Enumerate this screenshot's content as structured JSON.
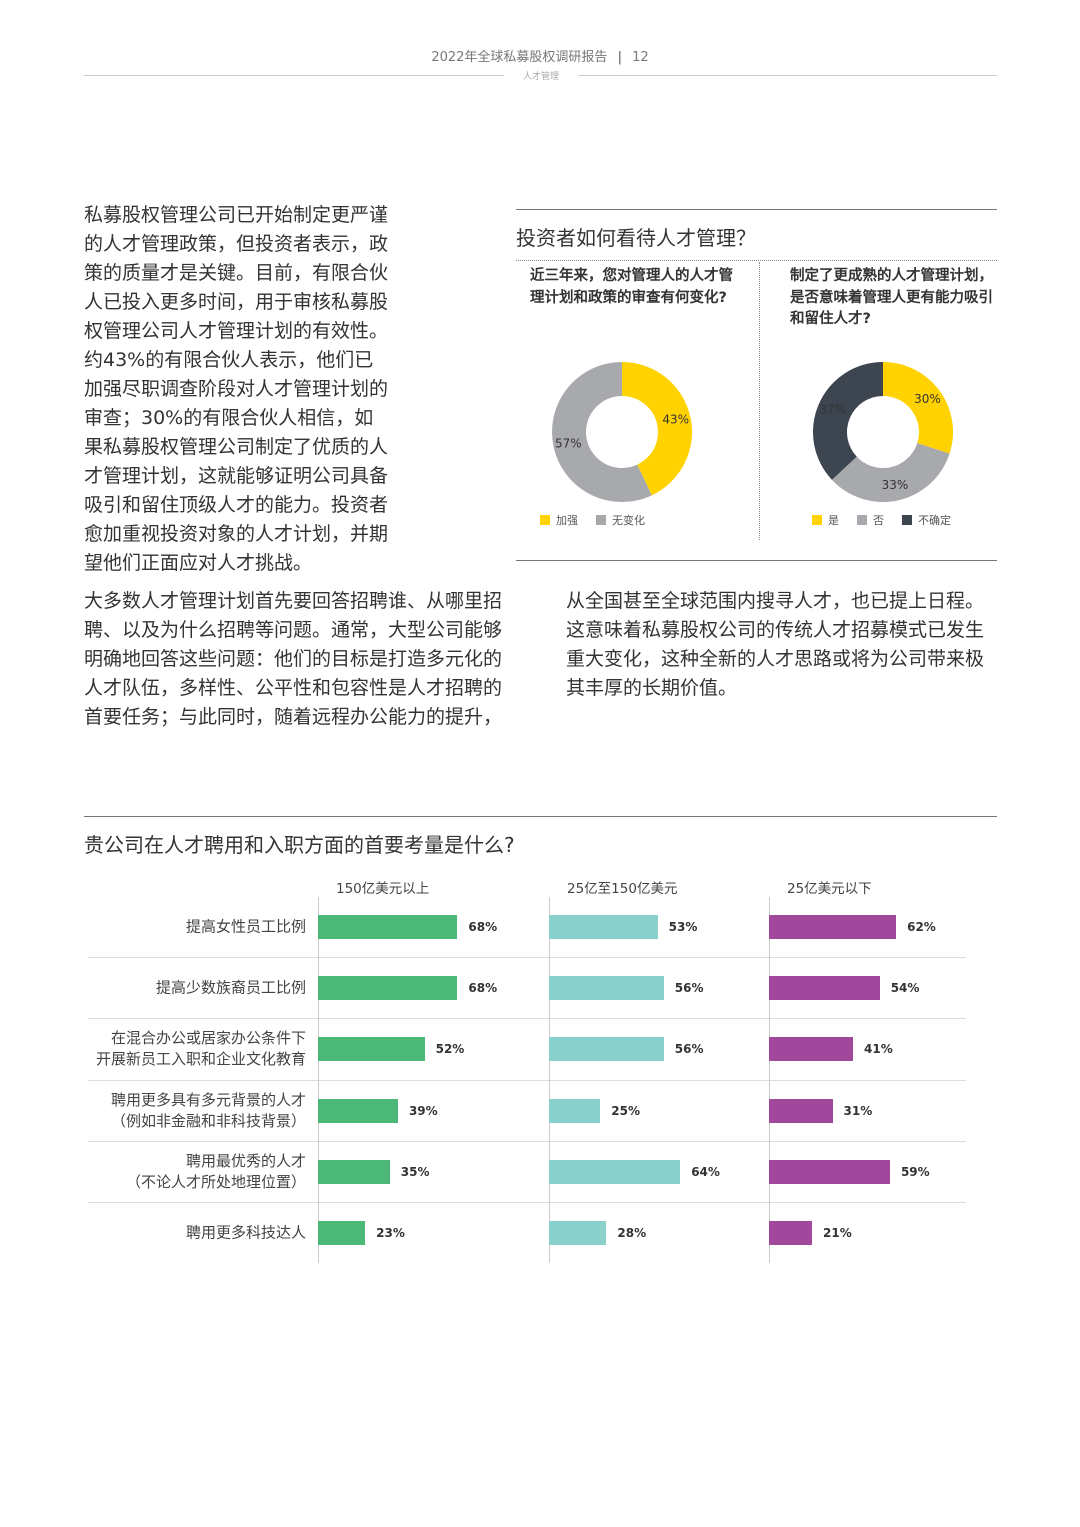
{
  "header": {
    "report": "2022年全球私募股权调研报告",
    "page": "12",
    "section": "人才管理"
  },
  "body": {
    "intro": "私募股权管理公司已开始制定更严谨的人才管理政策，但投资者表示，政策的质量才是关键。目前，有限合伙人已投入更多时间，用于审核私募股权管理公司人才管理计划的有效性。约43%的有限合伙人表示，他们已加强尽职调查阶段对人才管理计划的审查；30%的有限合伙人相信，如果私募股权管理公司制定了优质的人才管理计划，这就能够证明公司具备吸引和留住顶级人才的能力。投资者愈加重视投资对象的人才计划，并期望他们正面应对人才挑战。",
    "text_left": "大多数人才管理计划首先要回答招聘谁、从哪里招聘、以及为什么招聘等问题。通常，大型公司能够明确地回答这些问题：他们的目标是打造多元化的人才队伍，多样性、公平性和包容性是人才招聘的首要任务；与此同时，随着远程办公能力的提升，",
    "text_right": "从全国甚至全球范围内搜寻人才，也已提上日程。这意味着私募股权公司的传统人才招募模式已发生重大变化，这种全新的人才思路或将为公司带来极其丰厚的长期价值。"
  },
  "survey_title": "投资者如何看待人才管理？",
  "chart_data": [
    {
      "type": "pie",
      "title": "近三年来，您对管理人的人才管理计划和政策的审查有何变化?",
      "categories": [
        "加强",
        "无变化"
      ],
      "values": [
        43,
        57
      ],
      "value_labels": [
        "43%",
        "57%"
      ],
      "colors": [
        "#ffd200",
        "#a7a9ac"
      ]
    },
    {
      "type": "pie",
      "title": "制定了更成熟的人才管理计划，是否意味着管理人更有能力吸引和留住人才?",
      "categories": [
        "是",
        "否",
        "不确定"
      ],
      "values": [
        30,
        33,
        37
      ],
      "value_labels": [
        "30%",
        "33%",
        "37%"
      ],
      "colors": [
        "#ffd200",
        "#a7a9ac",
        "#3d4550"
      ]
    },
    {
      "type": "bar",
      "title": "贵公司在人才聘用和入职方面的首要考量是什么?",
      "categories": [
        "提高女性员工比例",
        "提高少数族裔员工比例",
        "在混合办公或居家办公条件下\n开展新员工入职和企业文化教育",
        "聘用更多具有多元背景的人才\n（例如非金融和非科技背景）",
        "聘用最优秀的人才\n（不论人才所处地理位置）",
        "聘用更多科技达人"
      ],
      "series": [
        {
          "name": "150亿美元以上",
          "color": "#4bb877",
          "values": [
            68,
            68,
            52,
            39,
            35,
            23
          ],
          "value_labels": [
            "68%",
            "68%",
            "52%",
            "39%",
            "35%",
            "23%"
          ]
        },
        {
          "name": "25亿至150亿美元",
          "color": "#8ad1cc",
          "values": [
            53,
            56,
            56,
            25,
            64,
            28
          ],
          "value_labels": [
            "53%",
            "56%",
            "56%",
            "25%",
            "64%",
            "28%"
          ]
        },
        {
          "name": "25亿美元以下",
          "color": "#a1489c",
          "values": [
            62,
            54,
            41,
            31,
            59,
            21
          ],
          "value_labels": [
            "62%",
            "54%",
            "41%",
            "31%",
            "59%",
            "21%"
          ]
        }
      ]
    }
  ]
}
